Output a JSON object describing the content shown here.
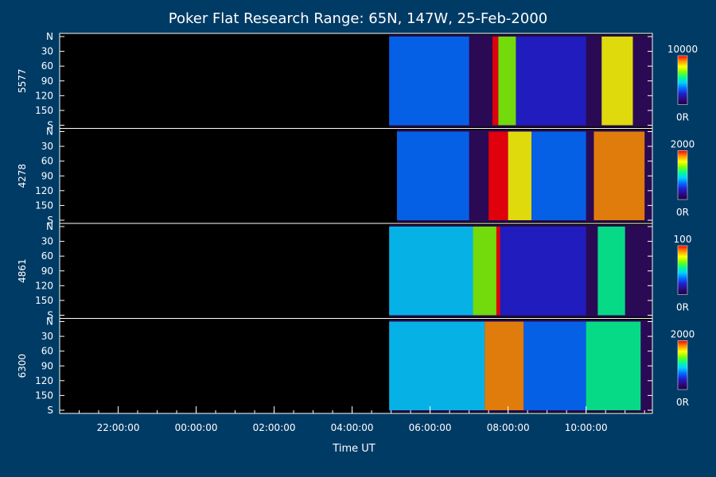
{
  "chart_data": {
    "type": "heatmap",
    "title": "Poker Flat Research Range: 65N, 147W, 25-Feb-2000",
    "xlabel": "Time UT",
    "x_tick_labels": [
      "22:00:00",
      "00:00:00",
      "02:00:00",
      "04:00:00",
      "06:00:00",
      "08:00:00",
      "10:00:00"
    ],
    "x_range_hours_ut": [
      20.5,
      11.7
    ],
    "y_tick_labels": [
      "N",
      "30",
      "60",
      "90",
      "120",
      "150",
      "S"
    ],
    "y_range": [
      0,
      180
    ],
    "grid": false,
    "colormap": [
      "#200040",
      "#2a0a80",
      "#2020d0",
      "#0070ff",
      "#00d0ff",
      "#00ff90",
      "#80ff00",
      "#ffff00",
      "#ff9000",
      "#ff0000"
    ],
    "colorbar_label_min": "0R",
    "panels": [
      {
        "name": "5577",
        "colorbar_max": "10000",
        "data_start_hour_ut": 4.95,
        "features": [
          {
            "start": 4.95,
            "end": 7.0,
            "level": 0.3
          },
          {
            "start": 7.6,
            "end": 7.75,
            "level": 0.95
          },
          {
            "start": 7.75,
            "end": 8.2,
            "level": 0.7
          },
          {
            "start": 8.2,
            "end": 10.0,
            "level": 0.25
          },
          {
            "start": 10.4,
            "end": 11.2,
            "level": 0.75
          }
        ]
      },
      {
        "name": "4278",
        "colorbar_max": "2000",
        "data_start_hour_ut": 5.15,
        "features": [
          {
            "start": 5.15,
            "end": 7.0,
            "level": 0.35
          },
          {
            "start": 7.5,
            "end": 8.0,
            "level": 1.0
          },
          {
            "start": 8.0,
            "end": 8.6,
            "level": 0.8
          },
          {
            "start": 8.6,
            "end": 10.0,
            "level": 0.35
          },
          {
            "start": 10.2,
            "end": 11.5,
            "level": 0.9
          }
        ]
      },
      {
        "name": "4861",
        "colorbar_max": "100",
        "data_start_hour_ut": 4.95,
        "features": [
          {
            "start": 4.95,
            "end": 7.1,
            "level": 0.45
          },
          {
            "start": 7.1,
            "end": 7.7,
            "level": 0.7
          },
          {
            "start": 7.7,
            "end": 7.8,
            "level": 0.95
          },
          {
            "start": 7.8,
            "end": 10.0,
            "level": 0.25
          },
          {
            "start": 10.3,
            "end": 11.0,
            "level": 0.5
          }
        ]
      },
      {
        "name": "6300",
        "colorbar_max": "2000",
        "data_start_hour_ut": 4.95,
        "features": [
          {
            "start": 4.95,
            "end": 7.4,
            "level": 0.4
          },
          {
            "start": 7.4,
            "end": 8.4,
            "level": 0.85
          },
          {
            "start": 8.4,
            "end": 10.0,
            "level": 0.35
          },
          {
            "start": 10.0,
            "end": 11.4,
            "level": 0.55
          }
        ]
      }
    ]
  }
}
